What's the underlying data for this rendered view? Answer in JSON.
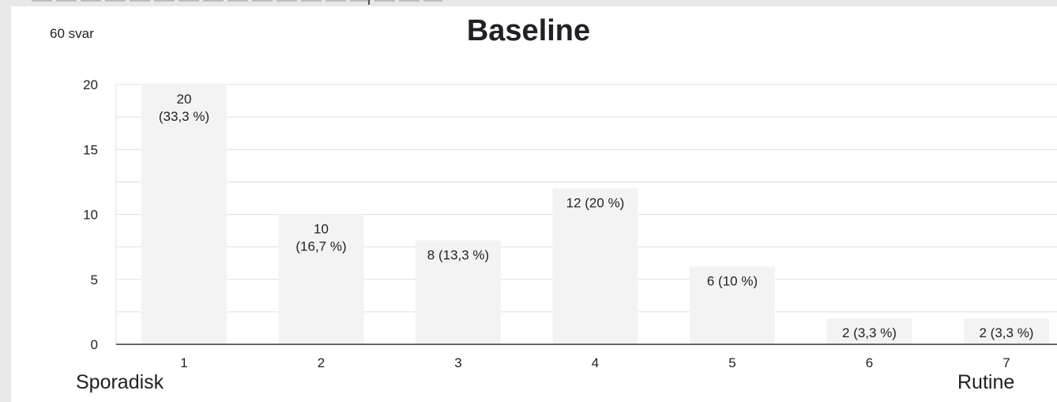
{
  "response_count": "60 svar",
  "chart_data": {
    "type": "bar",
    "title": "Baseline",
    "categories": [
      "1",
      "2",
      "3",
      "4",
      "5",
      "6",
      "7"
    ],
    "values": [
      20,
      10,
      8,
      12,
      6,
      2,
      2
    ],
    "data_labels": [
      [
        "20",
        "(33,3 %)"
      ],
      [
        "10",
        "(16,7 %)"
      ],
      [
        "8 (13,3 %)"
      ],
      [
        "12 (20 %)"
      ],
      [
        "6 (10 %)"
      ],
      [
        "2 (3,3 %)"
      ],
      [
        "2 (3,3 %)"
      ]
    ],
    "yticks": [
      0,
      5,
      10,
      15,
      20
    ],
    "ylim": [
      0,
      20
    ],
    "grid": true,
    "scale_min_label": "Sporadisk",
    "scale_max_label": "Rutine"
  },
  "colors": {
    "bar": "#f3f3f3",
    "gridline": "#e0e0e0",
    "axis": "#333333",
    "text": "#202124"
  }
}
